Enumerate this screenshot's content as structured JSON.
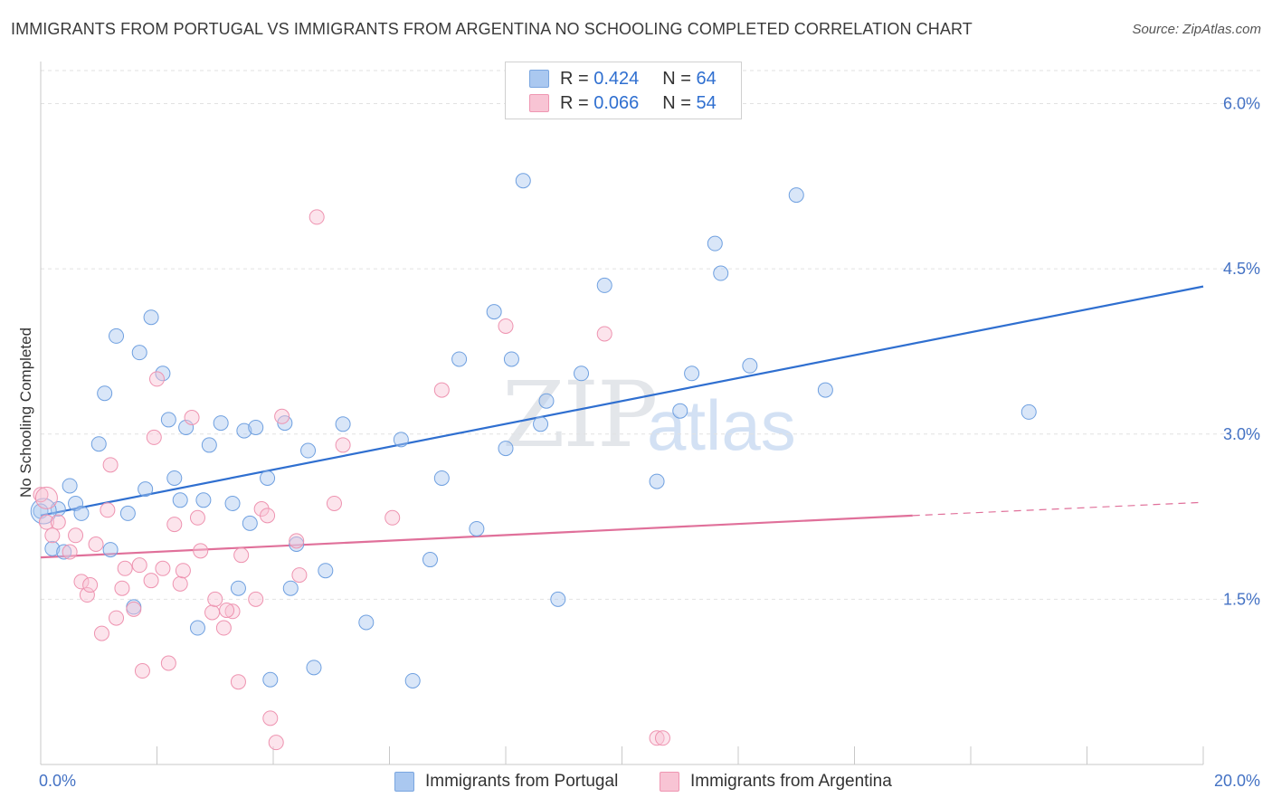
{
  "title": "IMMIGRANTS FROM PORTUGAL VS IMMIGRANTS FROM ARGENTINA NO SCHOOLING COMPLETED CORRELATION CHART",
  "source": "Source: ZipAtlas.com",
  "watermark": {
    "zip": "ZIP",
    "atlas": "atlas"
  },
  "legend": {
    "r_label": "R =",
    "n_label": "N =",
    "rows": [
      {
        "r": "0.424",
        "n": "64",
        "color": "#aac8f0",
        "border": "#7aa6e0"
      },
      {
        "r": "0.066",
        "n": "54",
        "color": "#f8c4d4",
        "border": "#ef96b2"
      }
    ]
  },
  "bottom_legend": [
    {
      "label": "Immigrants from Portugal",
      "color": "#aac8f0",
      "border": "#7aa6e0"
    },
    {
      "label": "Immigrants from Argentina",
      "color": "#f8c4d4",
      "border": "#ef96b2"
    }
  ],
  "chart_data": {
    "type": "scatter",
    "ylabel": "No Schooling Completed",
    "xlim": [
      0,
      20
    ],
    "ylim": [
      0,
      6.3
    ],
    "x_tick_labels": [
      "0.0%",
      "20.0%"
    ],
    "y_ticks": [
      1.5,
      3.0,
      4.5,
      6.0
    ],
    "y_tick_labels": [
      "1.5%",
      "3.0%",
      "4.5%",
      "6.0%"
    ],
    "grid": true,
    "colors": {
      "portugal": "#6fa0e0",
      "portugal_line": "#2f6fd0",
      "argentina": "#ee93b0",
      "argentina_line": "#e0709a"
    },
    "series": [
      {
        "name": "Immigrants from Portugal",
        "trend": {
          "x0": 0,
          "y0": 2.26,
          "x1": 20,
          "y1": 4.34
        },
        "points": [
          [
            0.0,
            2.3
          ],
          [
            0.2,
            1.96
          ],
          [
            0.3,
            2.32
          ],
          [
            0.4,
            1.93
          ],
          [
            0.5,
            2.53
          ],
          [
            0.6,
            2.37
          ],
          [
            0.7,
            2.28
          ],
          [
            1.0,
            2.91
          ],
          [
            1.1,
            3.37
          ],
          [
            1.2,
            1.95
          ],
          [
            1.3,
            3.89
          ],
          [
            1.5,
            2.28
          ],
          [
            1.6,
            1.43
          ],
          [
            1.7,
            3.74
          ],
          [
            1.8,
            2.5
          ],
          [
            1.9,
            4.06
          ],
          [
            2.1,
            3.55
          ],
          [
            2.2,
            3.13
          ],
          [
            2.3,
            2.6
          ],
          [
            2.4,
            2.4
          ],
          [
            2.5,
            3.06
          ],
          [
            2.7,
            1.24
          ],
          [
            2.8,
            2.4
          ],
          [
            2.9,
            2.9
          ],
          [
            3.1,
            3.1
          ],
          [
            3.3,
            2.37
          ],
          [
            3.4,
            1.6
          ],
          [
            3.5,
            3.03
          ],
          [
            3.6,
            2.19
          ],
          [
            3.7,
            3.06
          ],
          [
            3.9,
            2.6
          ],
          [
            3.95,
            0.77
          ],
          [
            4.2,
            3.1
          ],
          [
            4.3,
            1.6
          ],
          [
            4.4,
            2.0
          ],
          [
            4.6,
            2.85
          ],
          [
            4.7,
            0.88
          ],
          [
            4.9,
            1.76
          ],
          [
            5.2,
            3.09
          ],
          [
            5.6,
            1.29
          ],
          [
            6.2,
            2.95
          ],
          [
            6.4,
            0.76
          ],
          [
            6.7,
            1.86
          ],
          [
            6.9,
            2.6
          ],
          [
            7.2,
            3.68
          ],
          [
            7.5,
            2.14
          ],
          [
            7.8,
            4.11
          ],
          [
            8.0,
            2.87
          ],
          [
            8.1,
            3.68
          ],
          [
            8.3,
            5.3
          ],
          [
            8.6,
            3.09
          ],
          [
            8.7,
            3.3
          ],
          [
            8.9,
            1.5
          ],
          [
            9.3,
            3.55
          ],
          [
            9.7,
            4.35
          ],
          [
            10.6,
            2.57
          ],
          [
            11.0,
            3.21
          ],
          [
            11.2,
            3.55
          ],
          [
            11.6,
            4.73
          ],
          [
            11.7,
            4.46
          ],
          [
            12.2,
            3.62
          ],
          [
            13.0,
            5.17
          ],
          [
            13.5,
            3.4
          ],
          [
            17.0,
            3.2
          ]
        ]
      },
      {
        "name": "Immigrants from Argentina",
        "trend": {
          "x0": 0,
          "y0": 1.88,
          "x1": 15.0,
          "y1": 2.26
        },
        "trend_ext": {
          "x0": 15.0,
          "y0": 2.26,
          "x1": 20,
          "y1": 2.38
        },
        "points": [
          [
            0.0,
            2.45
          ],
          [
            0.1,
            2.2
          ],
          [
            0.2,
            2.08
          ],
          [
            0.3,
            2.2
          ],
          [
            0.5,
            1.93
          ],
          [
            0.6,
            2.08
          ],
          [
            0.7,
            1.66
          ],
          [
            0.8,
            1.54
          ],
          [
            0.85,
            1.63
          ],
          [
            0.95,
            2.0
          ],
          [
            1.05,
            1.19
          ],
          [
            1.15,
            2.31
          ],
          [
            1.2,
            2.72
          ],
          [
            1.3,
            1.33
          ],
          [
            1.4,
            1.6
          ],
          [
            1.45,
            1.78
          ],
          [
            1.6,
            1.41
          ],
          [
            1.7,
            1.81
          ],
          [
            1.75,
            0.85
          ],
          [
            1.9,
            1.67
          ],
          [
            1.95,
            2.97
          ],
          [
            2.0,
            3.5
          ],
          [
            2.1,
            1.78
          ],
          [
            2.2,
            0.92
          ],
          [
            2.3,
            2.18
          ],
          [
            2.4,
            1.64
          ],
          [
            2.45,
            1.76
          ],
          [
            2.6,
            3.15
          ],
          [
            2.7,
            2.24
          ],
          [
            2.75,
            1.94
          ],
          [
            2.95,
            1.38
          ],
          [
            3.0,
            1.5
          ],
          [
            3.15,
            1.24
          ],
          [
            3.3,
            1.39
          ],
          [
            3.4,
            0.75
          ],
          [
            3.45,
            1.9
          ],
          [
            3.7,
            1.5
          ],
          [
            3.8,
            2.32
          ],
          [
            3.9,
            2.26
          ],
          [
            3.95,
            0.42
          ],
          [
            4.05,
            0.2
          ],
          [
            4.15,
            3.16
          ],
          [
            4.4,
            2.03
          ],
          [
            4.45,
            1.72
          ],
          [
            4.75,
            4.97
          ],
          [
            5.05,
            2.37
          ],
          [
            5.2,
            2.9
          ],
          [
            6.05,
            2.24
          ],
          [
            6.9,
            3.4
          ],
          [
            8.0,
            3.98
          ],
          [
            9.7,
            3.91
          ],
          [
            10.6,
            0.24
          ],
          [
            10.7,
            0.24
          ],
          [
            3.2,
            1.4
          ]
        ]
      }
    ]
  }
}
